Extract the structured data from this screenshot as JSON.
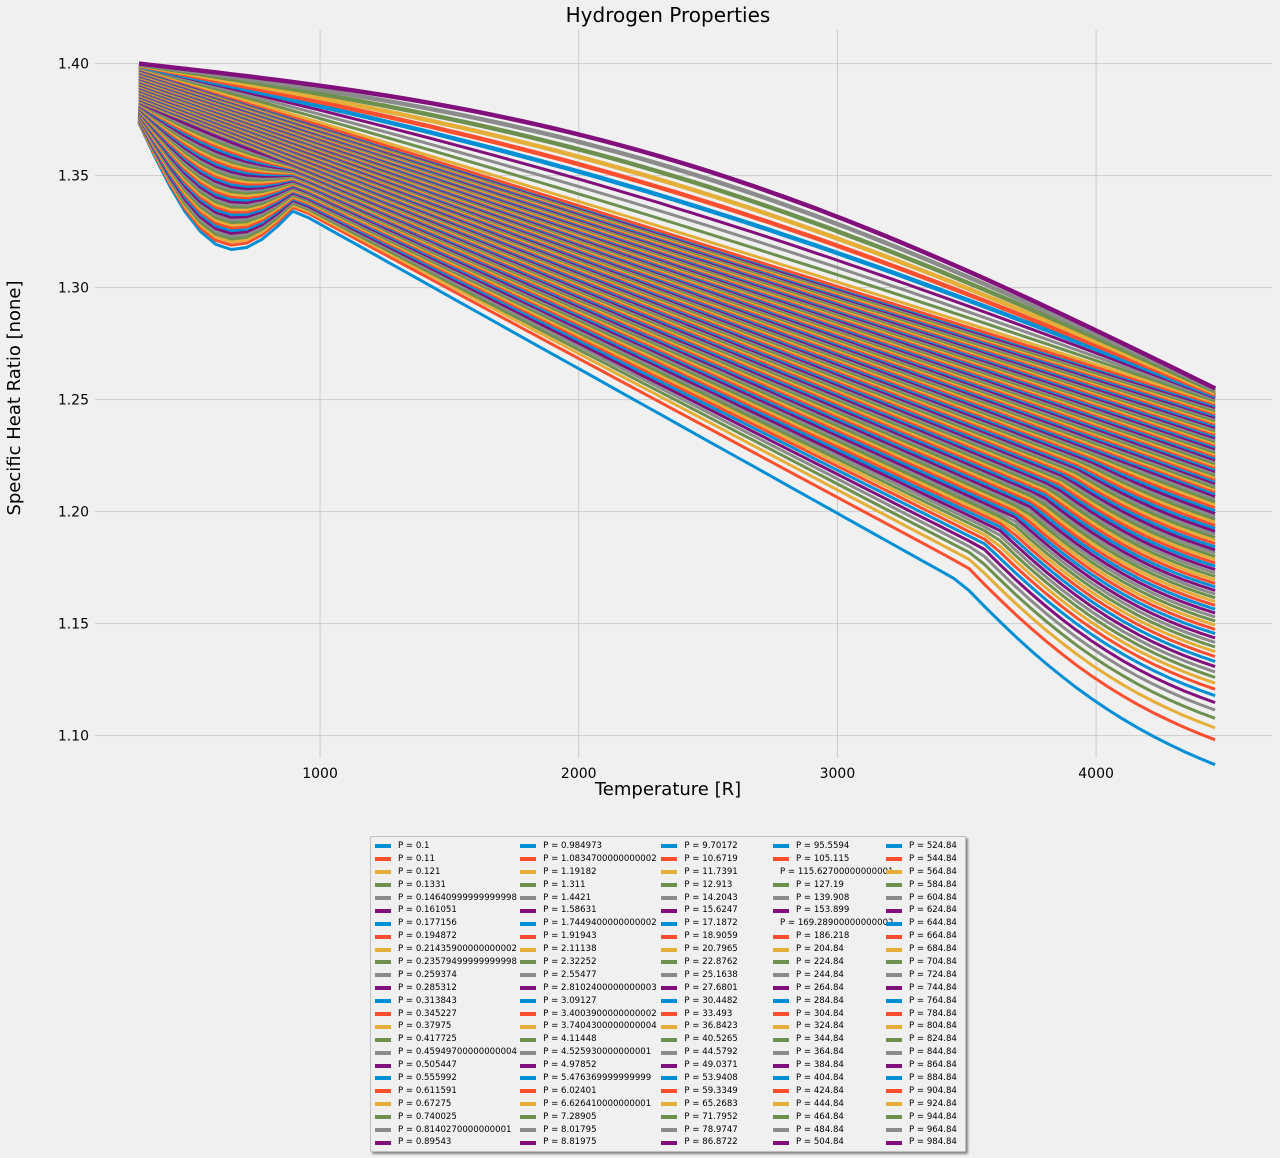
{
  "chart_data": {
    "type": "line",
    "title": "Hydrogen Properties",
    "xlabel": "Temperature [R]",
    "ylabel": "Specific Heat Ratio [none]",
    "xlim": [
      130,
      4680
    ],
    "ylim": [
      1.09,
      1.415
    ],
    "xticks": [
      "1000",
      "2000",
      "3000",
      "4000"
    ],
    "xtick_values": [
      1000,
      2000,
      3000,
      4000
    ],
    "yticks": [
      "1.10",
      "1.15",
      "1.20",
      "1.25",
      "1.30",
      "1.35",
      "1.40"
    ],
    "ytick_values": [
      1.1,
      1.15,
      1.2,
      1.25,
      1.3,
      1.35,
      1.4
    ],
    "grid": true,
    "legend_placement": "below chart, 5 columns",
    "x_range": [
      300,
      4460
    ],
    "color_cycle": [
      "#008fd5",
      "#fc4f30",
      "#e5ae38",
      "#6d904f",
      "#8b8b8b",
      "#810f7c"
    ],
    "series": [
      {
        "name": "P = 0.1"
      },
      {
        "name": "P = 0.11"
      },
      {
        "name": "P = 0.121"
      },
      {
        "name": "P = 0.1331"
      },
      {
        "name": "P = 0.14640999999999998"
      },
      {
        "name": "P = 0.161051"
      },
      {
        "name": "P = 0.177156"
      },
      {
        "name": "P = 0.194872"
      },
      {
        "name": "P = 0.21435900000000002"
      },
      {
        "name": "P = 0.23579499999999998"
      },
      {
        "name": "P = 0.259374"
      },
      {
        "name": "P = 0.285312"
      },
      {
        "name": "P = 0.313843"
      },
      {
        "name": "P = 0.345227"
      },
      {
        "name": "P = 0.37975"
      },
      {
        "name": "P = 0.417725"
      },
      {
        "name": "P = 0.45949700000000004"
      },
      {
        "name": "P = 0.505447"
      },
      {
        "name": "P = 0.555992"
      },
      {
        "name": "P = 0.611591"
      },
      {
        "name": "P = 0.67275"
      },
      {
        "name": "P = 0.740025"
      },
      {
        "name": "P = 0.8140270000000001"
      },
      {
        "name": "P = 0.89543"
      },
      {
        "name": "P = 0.984973"
      },
      {
        "name": "P = 1.0834700000000002"
      },
      {
        "name": "P = 1.19182"
      },
      {
        "name": "P = 1.311"
      },
      {
        "name": "P = 1.4421"
      },
      {
        "name": "P = 1.58631"
      },
      {
        "name": "P = 1.7449400000000002"
      },
      {
        "name": "P = 1.91943"
      },
      {
        "name": "P = 2.11138"
      },
      {
        "name": "P = 2.32252"
      },
      {
        "name": "P = 2.55477"
      },
      {
        "name": "P = 2.8102400000000003"
      },
      {
        "name": "P = 3.09127"
      },
      {
        "name": "P = 3.4003900000000002"
      },
      {
        "name": "P = 3.7404300000000004"
      },
      {
        "name": "P = 4.11448"
      },
      {
        "name": "P = 4.525930000000001"
      },
      {
        "name": "P = 4.97852"
      },
      {
        "name": "P = 5.476369999999999"
      },
      {
        "name": "P = 6.02401"
      },
      {
        "name": "P = 6.626410000000001"
      },
      {
        "name": "P = 7.28905"
      },
      {
        "name": "P = 8.01795"
      },
      {
        "name": "P = 8.81975"
      },
      {
        "name": "P = 9.70172"
      },
      {
        "name": "P = 10.6719"
      },
      {
        "name": "P = 11.7391"
      },
      {
        "name": "P = 12.913"
      },
      {
        "name": "P = 14.2043"
      },
      {
        "name": "P = 15.6247"
      },
      {
        "name": "P = 17.1872"
      },
      {
        "name": "P = 18.9059"
      },
      {
        "name": "P = 20.7965"
      },
      {
        "name": "P = 22.8762"
      },
      {
        "name": "P = 25.1638"
      },
      {
        "name": "P = 27.6801"
      },
      {
        "name": "P = 30.4482"
      },
      {
        "name": "P = 33.493"
      },
      {
        "name": "P = 36.8423"
      },
      {
        "name": "P = 40.5265"
      },
      {
        "name": "P = 44.5792"
      },
      {
        "name": "P = 49.0371"
      },
      {
        "name": "P = 53.9408"
      },
      {
        "name": "P = 59.3349"
      },
      {
        "name": "P = 65.2683"
      },
      {
        "name": "P = 71.7952"
      },
      {
        "name": "P = 78.9747"
      },
      {
        "name": "P = 86.8722"
      },
      {
        "name": "P = 95.5594"
      },
      {
        "name": "P = 105.115"
      },
      {
        "name": "P = 115.62700000000001"
      },
      {
        "name": "P = 127.19"
      },
      {
        "name": "P = 139.908"
      },
      {
        "name": "P = 153.899"
      },
      {
        "name": "P = 169.28900000000002"
      },
      {
        "name": "P = 186.218"
      },
      {
        "name": "P = 204.84"
      },
      {
        "name": "P = 224.84"
      },
      {
        "name": "P = 244.84"
      },
      {
        "name": "P = 264.84"
      },
      {
        "name": "P = 284.84"
      },
      {
        "name": "P = 304.84"
      },
      {
        "name": "P = 324.84"
      },
      {
        "name": "P = 344.84"
      },
      {
        "name": "P = 364.84"
      },
      {
        "name": "P = 384.84"
      },
      {
        "name": "P = 404.84"
      },
      {
        "name": "P = 424.84"
      },
      {
        "name": "P = 444.84"
      },
      {
        "name": "P = 464.84"
      },
      {
        "name": "P = 484.84"
      },
      {
        "name": "P = 504.84"
      },
      {
        "name": "P = 524.84"
      },
      {
        "name": "P = 544.84"
      },
      {
        "name": "P = 564.84"
      },
      {
        "name": "P = 584.84"
      },
      {
        "name": "P = 604.84"
      },
      {
        "name": "P = 624.84"
      },
      {
        "name": "P = 644.84"
      },
      {
        "name": "P = 664.84"
      },
      {
        "name": "P = 684.84"
      },
      {
        "name": "P = 704.84"
      },
      {
        "name": "P = 724.84"
      },
      {
        "name": "P = 744.84"
      },
      {
        "name": "P = 764.84"
      },
      {
        "name": "P = 784.84"
      },
      {
        "name": "P = 804.84"
      },
      {
        "name": "P = 824.84"
      },
      {
        "name": "P = 844.84"
      },
      {
        "name": "P = 864.84"
      },
      {
        "name": "P = 884.84"
      },
      {
        "name": "P = 904.84"
      },
      {
        "name": "P = 924.84"
      },
      {
        "name": "P = 944.84"
      },
      {
        "name": "P = 964.84"
      },
      {
        "name": "P = 984.84"
      }
    ]
  }
}
